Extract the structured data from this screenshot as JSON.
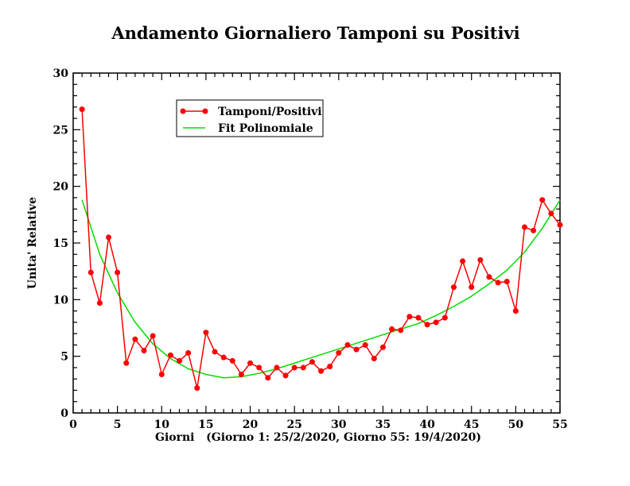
{
  "chart_data": {
    "type": "line",
    "title": "Andamento Giornaliero Tamponi su Positivi",
    "xlabel": "Giorni   (Giorno 1: 25/2/2020, Giorno 55: 19/4/2020)",
    "ylabel": "Unita' Relative",
    "xlim": [
      0,
      55
    ],
    "ylim": [
      0,
      30
    ],
    "xticks": [
      0,
      5,
      10,
      15,
      20,
      25,
      30,
      35,
      40,
      45,
      50,
      55
    ],
    "yticks": [
      0,
      5,
      10,
      15,
      20,
      25,
      30
    ],
    "grid": false,
    "legend_position": "top-left",
    "series": [
      {
        "name": "Tamponi/Positivi",
        "color": "#ff0000",
        "marker": "circle",
        "x": [
          1,
          2,
          3,
          4,
          5,
          6,
          7,
          8,
          9,
          10,
          11,
          12,
          13,
          14,
          15,
          16,
          17,
          18,
          19,
          20,
          21,
          22,
          23,
          24,
          25,
          26,
          27,
          28,
          29,
          30,
          31,
          32,
          33,
          34,
          35,
          36,
          37,
          38,
          39,
          40,
          41,
          42,
          43,
          44,
          45,
          46,
          47,
          48,
          49,
          50,
          51,
          52,
          53,
          54,
          55
        ],
        "values": [
          26.8,
          12.4,
          9.7,
          15.5,
          12.4,
          4.4,
          6.5,
          5.5,
          6.8,
          3.4,
          5.1,
          4.6,
          5.3,
          2.2,
          7.1,
          5.4,
          4.9,
          4.6,
          3.4,
          4.4,
          4.0,
          3.1,
          4.0,
          3.3,
          4.0,
          4.0,
          4.5,
          3.7,
          4.1,
          5.3,
          6.0,
          5.6,
          6.0,
          4.8,
          5.8,
          7.4,
          7.3,
          8.5,
          8.4,
          7.8,
          8.0,
          8.4,
          11.1,
          13.4,
          11.1,
          13.5,
          12.0,
          11.5,
          11.6,
          9.0,
          16.4,
          16.1,
          18.8,
          17.6,
          16.6
        ]
      },
      {
        "name": "Fit Polinomiale",
        "color": "#00dd00",
        "marker": "none",
        "x": [
          1,
          3,
          5,
          7,
          9,
          11,
          13,
          15,
          17,
          19,
          21,
          23,
          25,
          27,
          29,
          31,
          33,
          35,
          37,
          39,
          41,
          43,
          45,
          47,
          49,
          51,
          53,
          55
        ],
        "values": [
          18.8,
          14.0,
          10.6,
          8.0,
          6.1,
          4.8,
          3.9,
          3.4,
          3.1,
          3.2,
          3.5,
          3.9,
          4.4,
          4.9,
          5.4,
          5.9,
          6.4,
          6.9,
          7.4,
          7.9,
          8.6,
          9.4,
          10.3,
          11.4,
          12.6,
          14.2,
          16.3,
          18.8
        ]
      }
    ]
  }
}
